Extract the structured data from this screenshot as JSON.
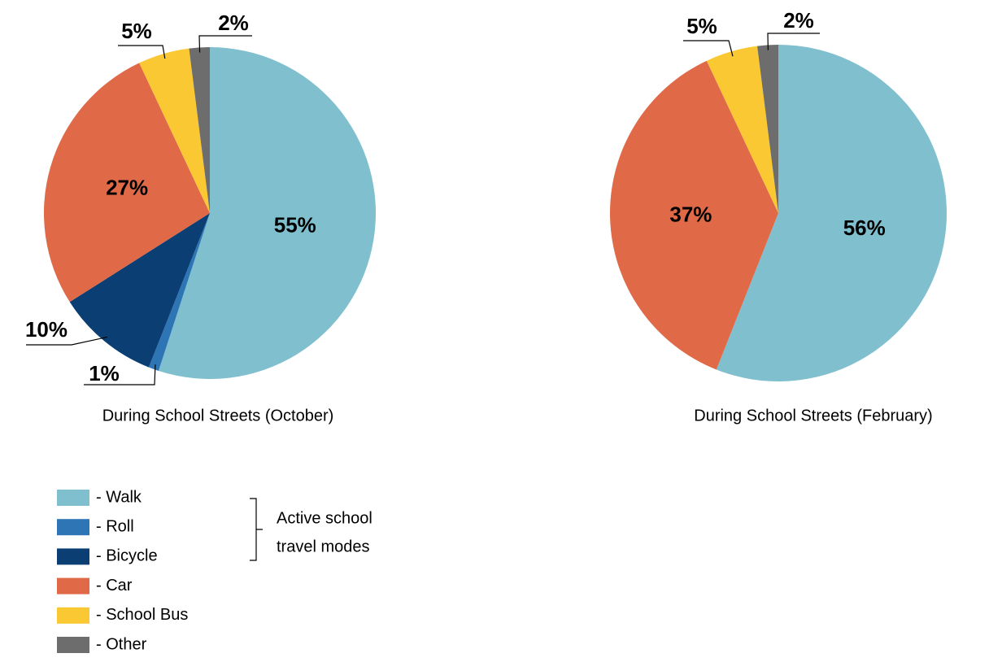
{
  "chart_data": [
    {
      "type": "pie",
      "title": "During School Streets (October)",
      "values": [
        55,
        1,
        10,
        27,
        5,
        2
      ],
      "value_labels": [
        "55%",
        "1%",
        "10%",
        "27%",
        "5%",
        "2%"
      ],
      "colors": [
        "#80bfce",
        "#2e75b6",
        "#0b3f73",
        "#e06947",
        "#fac832",
        "#6d6d6d"
      ]
    },
    {
      "type": "pie",
      "title": "During School Streets (February)",
      "values": [
        56,
        37,
        5,
        2
      ],
      "value_labels": [
        "56%",
        "37%",
        "5%",
        "2%"
      ],
      "colors": [
        "#80bfce",
        "#e06947",
        "#fac832",
        "#6d6d6d"
      ]
    }
  ],
  "legend": {
    "items": [
      {
        "label": "- Walk",
        "color": "#80bfce"
      },
      {
        "label": "- Roll",
        "color": "#2e75b6"
      },
      {
        "label": "- Bicycle",
        "color": "#0b3f73"
      },
      {
        "label": "- Car",
        "color": "#e06947"
      },
      {
        "label": "- School Bus",
        "color": "#fac832"
      },
      {
        "label": "- Other",
        "color": "#6d6d6d"
      }
    ],
    "bracket_label": [
      "Active school",
      "travel modes"
    ]
  }
}
